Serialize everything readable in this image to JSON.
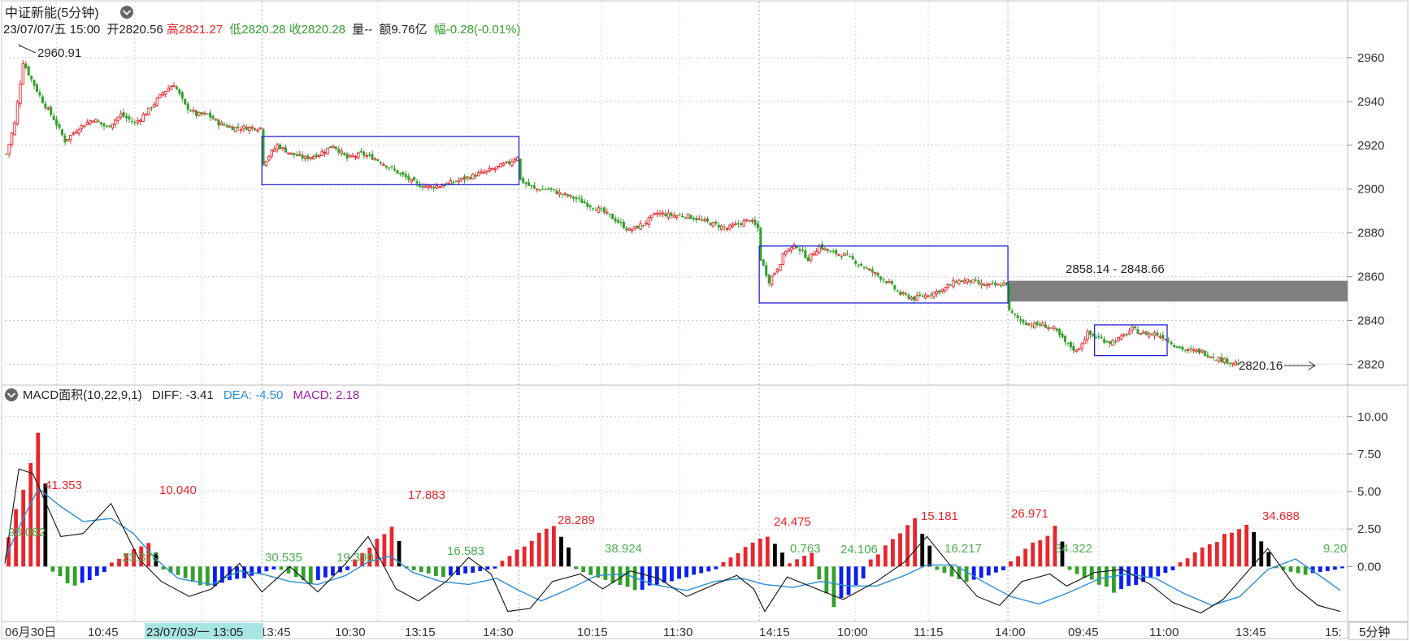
{
  "header": {
    "title": "中证新能(5分钟)",
    "datetime": "23/07/07/五 15:00",
    "open_label": "开",
    "open_value": "2820.56",
    "high_label": "高",
    "high_value": "2821.27",
    "low_label": "低",
    "low_value": "2820.28",
    "close_label": "收",
    "close_value": "2820.28",
    "volume_label": "量",
    "volume_value": "--",
    "amount_label": "额",
    "amount_value": "9.76亿",
    "change_label": "幅",
    "change_value": "-0.28(-0.01%)"
  },
  "price_panel": {
    "high_annotation": "2960.91",
    "low_annotation": "2820.16",
    "gap_label": "2858.14 - 2848.66",
    "gap_range": [
      2848.66,
      2858.14
    ]
  },
  "macd_panel": {
    "indicator_label": "MACD面积(10,22,9,1)",
    "diff_label": "DIFF: -3.41",
    "dea_label": "DEA: -4.50",
    "macd_label": "MACD: 2.18"
  },
  "time_axis": {
    "labels": [
      "06月30日",
      "10:45",
      "11:30",
      "13:45",
      "10:30",
      "13:15",
      "14:30",
      "10:15",
      "11:30",
      "14:15",
      "10:00",
      "11:15",
      "14:00",
      "09:45",
      "11:00",
      "13:45",
      "15:"
    ],
    "cursor_label": "23/07/03/一 13:05",
    "period_button": "5分钟"
  },
  "colors": {
    "up": "#e8262c",
    "down": "#33a02c",
    "macd_pos_bar": "#000000",
    "macd_neg_bar": "#0a1ff0",
    "dea_line": "#2b8fd6",
    "diff_line": "#111111",
    "box": "#2424d6",
    "gap_fill": "#808080",
    "cursor_bg": "#a8e6e3"
  },
  "chart_data": [
    {
      "type": "candlestick",
      "ylim": [
        2812,
        2970
      ],
      "yticks": [
        "2960",
        "2940",
        "2920",
        "2900",
        "2880",
        "2860",
        "2840",
        "2820"
      ],
      "close_path": [
        [
          0,
          2916
        ],
        [
          3,
          2930
        ],
        [
          6,
          2958
        ],
        [
          9,
          2950
        ],
        [
          13,
          2940
        ],
        [
          17,
          2932
        ],
        [
          21,
          2922
        ],
        [
          26,
          2928
        ],
        [
          31,
          2932
        ],
        [
          36,
          2928
        ],
        [
          41,
          2934
        ],
        [
          46,
          2930
        ],
        [
          51,
          2936
        ],
        [
          56,
          2944
        ],
        [
          60,
          2948
        ],
        [
          64,
          2938
        ],
        [
          68,
          2934
        ],
        [
          72,
          2934
        ],
        [
          76,
          2930
        ],
        [
          81,
          2928
        ],
        [
          86,
          2928
        ],
        [
          91,
          2928
        ],
        [
          92,
          2912
        ],
        [
          97,
          2920
        ],
        [
          102,
          2916
        ],
        [
          107,
          2914
        ],
        [
          112,
          2916
        ],
        [
          117,
          2920
        ],
        [
          122,
          2914
        ],
        [
          127,
          2916
        ],
        [
          132,
          2914
        ],
        [
          137,
          2910
        ],
        [
          142,
          2906
        ],
        [
          147,
          2902
        ],
        [
          152,
          2901
        ],
        [
          157,
          2902
        ],
        [
          162,
          2904
        ],
        [
          167,
          2906
        ],
        [
          172,
          2908
        ],
        [
          176,
          2910
        ],
        [
          180,
          2912
        ],
        [
          183,
          2915
        ],
        [
          184,
          2904
        ],
        [
          189,
          2900
        ],
        [
          194,
          2900
        ],
        [
          198,
          2898
        ],
        [
          203,
          2896
        ],
        [
          208,
          2893
        ],
        [
          213,
          2890
        ],
        [
          218,
          2886
        ],
        [
          223,
          2881
        ],
        [
          228,
          2884
        ],
        [
          233,
          2889
        ],
        [
          238,
          2888
        ],
        [
          243,
          2888
        ],
        [
          248,
          2886
        ],
        [
          253,
          2884
        ],
        [
          258,
          2882
        ],
        [
          262,
          2884
        ],
        [
          266,
          2886
        ],
        [
          269,
          2882
        ],
        [
          270,
          2868
        ],
        [
          273,
          2858
        ],
        [
          276,
          2864
        ],
        [
          279,
          2872
        ],
        [
          283,
          2874
        ],
        [
          287,
          2868
        ],
        [
          291,
          2874
        ],
        [
          295,
          2871
        ],
        [
          300,
          2870
        ],
        [
          305,
          2866
        ],
        [
          310,
          2862
        ],
        [
          315,
          2858
        ],
        [
          320,
          2852
        ],
        [
          325,
          2850
        ],
        [
          330,
          2852
        ],
        [
          335,
          2854
        ],
        [
          340,
          2858
        ],
        [
          345,
          2858
        ],
        [
          350,
          2856
        ],
        [
          355,
          2856
        ],
        [
          358,
          2857
        ],
        [
          359,
          2844
        ],
        [
          363,
          2840
        ],
        [
          367,
          2838
        ],
        [
          371,
          2838
        ],
        [
          375,
          2836
        ],
        [
          379,
          2830
        ],
        [
          383,
          2826
        ],
        [
          387,
          2834
        ],
        [
          391,
          2832
        ],
        [
          395,
          2830
        ],
        [
          399,
          2832
        ],
        [
          403,
          2836
        ],
        [
          407,
          2834
        ],
        [
          411,
          2834
        ],
        [
          415,
          2832
        ],
        [
          419,
          2828
        ],
        [
          423,
          2826
        ],
        [
          427,
          2826
        ],
        [
          431,
          2824
        ],
        [
          435,
          2822
        ],
        [
          441,
          2820.28
        ]
      ],
      "extremes": {
        "high": 2960.91,
        "low": 2820.16
      }
    },
    {
      "type": "macd",
      "ylim": [
        -3.4,
        10.8
      ],
      "yticks": [
        "10.00",
        "7.50",
        "5.00",
        "2.50",
        "0.00"
      ],
      "area_labels": [
        {
          "value": "41.353",
          "sign": "positive"
        },
        {
          "value": "93.082",
          "sign": "negative"
        },
        {
          "value": "10.040",
          "sign": "positive"
        },
        {
          "value": "23.370",
          "sign": "negative"
        },
        {
          "value": "30.535",
          "sign": "negative"
        },
        {
          "value": "19.390",
          "sign": "negative"
        },
        {
          "value": "17.883",
          "sign": "positive"
        },
        {
          "value": "16.583",
          "sign": "negative"
        },
        {
          "value": "28.289",
          "sign": "positive"
        },
        {
          "value": "38.924",
          "sign": "negative"
        },
        {
          "value": "24.475",
          "sign": "positive"
        },
        {
          "value": "0.763",
          "sign": "negative"
        },
        {
          "value": "24.106",
          "sign": "negative"
        },
        {
          "value": "15.181",
          "sign": "positive"
        },
        {
          "value": "16.217",
          "sign": "negative"
        },
        {
          "value": "26.971",
          "sign": "positive"
        },
        {
          "value": "34.322",
          "sign": "negative"
        },
        {
          "value": "34.688",
          "sign": "positive"
        },
        {
          "value": "9.20",
          "sign": "negative"
        }
      ],
      "histogram_segments": [
        {
          "from": 0,
          "to": 5,
          "peak": 9.8
        },
        {
          "from": 6,
          "to": 13,
          "peak": -1.5
        },
        {
          "from": 14,
          "to": 20,
          "peak": 1.8
        },
        {
          "from": 21,
          "to": 36,
          "peak": -1.5
        },
        {
          "from": 37,
          "to": 46,
          "peak": -1.2
        },
        {
          "from": 47,
          "to": 53,
          "peak": 2.9
        },
        {
          "from": 54,
          "to": 66,
          "peak": -0.8
        },
        {
          "from": 67,
          "to": 76,
          "peak": 3.1
        },
        {
          "from": 77,
          "to": 96,
          "peak": -1.7
        },
        {
          "from": 97,
          "to": 105,
          "peak": 2.3
        },
        {
          "from": 106,
          "to": 109,
          "peak": 1.0
        },
        {
          "from": 110,
          "to": 116,
          "peak": -3.0
        },
        {
          "from": 117,
          "to": 125,
          "peak": 3.3
        },
        {
          "from": 126,
          "to": 135,
          "peak": -1.2
        },
        {
          "from": 136,
          "to": 143,
          "peak": 2.8
        },
        {
          "from": 144,
          "to": 158,
          "peak": -1.8
        },
        {
          "from": 159,
          "to": 171,
          "peak": 3.2
        },
        {
          "from": 172,
          "to": 181,
          "peak": -0.6
        }
      ],
      "diff_path": [
        [
          0,
          0.2
        ],
        [
          5,
          6.5
        ],
        [
          10,
          6.2
        ],
        [
          20,
          2.0
        ],
        [
          28,
          2.2
        ],
        [
          38,
          4.2
        ],
        [
          48,
          0.5
        ],
        [
          56,
          -1.0
        ],
        [
          66,
          -2.0
        ],
        [
          74,
          -1.5
        ],
        [
          84,
          0.2
        ],
        [
          92,
          -1.7
        ],
        [
          102,
          0.0
        ],
        [
          112,
          -1.7
        ],
        [
          122,
          0.2
        ],
        [
          130,
          2.0
        ],
        [
          140,
          -1.5
        ],
        [
          148,
          -2.3
        ],
        [
          158,
          -1.0
        ],
        [
          166,
          0.6
        ],
        [
          174,
          -0.5
        ],
        [
          180,
          -3.0
        ],
        [
          188,
          -2.8
        ],
        [
          196,
          -1.0
        ],
        [
          206,
          -0.5
        ],
        [
          214,
          -1.5
        ],
        [
          224,
          -0.3
        ],
        [
          234,
          -0.8
        ],
        [
          244,
          -2.0
        ],
        [
          254,
          -1.2
        ],
        [
          262,
          -0.6
        ],
        [
          268,
          -1.5
        ],
        [
          272,
          -3.0
        ],
        [
          280,
          -0.7
        ],
        [
          288,
          -1.3
        ],
        [
          300,
          -2.2
        ],
        [
          312,
          -1.0
        ],
        [
          322,
          0.3
        ],
        [
          330,
          2.0
        ],
        [
          340,
          -0.3
        ],
        [
          348,
          -2.0
        ],
        [
          356,
          -2.6
        ],
        [
          364,
          -1.0
        ],
        [
          374,
          -0.5
        ],
        [
          380,
          -1.3
        ],
        [
          390,
          -0.4
        ],
        [
          400,
          -0.2
        ],
        [
          410,
          -1.2
        ],
        [
          418,
          -2.4
        ],
        [
          428,
          -3.1
        ],
        [
          436,
          -2.2
        ],
        [
          444,
          -0.5
        ],
        [
          452,
          1.2
        ],
        [
          462,
          -1.4
        ],
        [
          470,
          -2.6
        ],
        [
          478,
          -3.0
        ]
      ],
      "dea_path": [
        [
          0,
          0.5
        ],
        [
          6,
          3.0
        ],
        [
          12,
          5.2
        ],
        [
          20,
          4.0
        ],
        [
          28,
          3.0
        ],
        [
          38,
          3.2
        ],
        [
          46,
          2.2
        ],
        [
          54,
          0.5
        ],
        [
          62,
          -0.8
        ],
        [
          74,
          -1.2
        ],
        [
          84,
          -0.3
        ],
        [
          92,
          -0.5
        ],
        [
          102,
          -1.0
        ],
        [
          112,
          -1.2
        ],
        [
          122,
          -0.6
        ],
        [
          130,
          0.3
        ],
        [
          138,
          0.7
        ],
        [
          146,
          -0.4
        ],
        [
          156,
          -1.0
        ],
        [
          166,
          -1.2
        ],
        [
          176,
          -0.8
        ],
        [
          184,
          -1.6
        ],
        [
          192,
          -2.3
        ],
        [
          202,
          -1.5
        ],
        [
          212,
          -0.6
        ],
        [
          222,
          -0.5
        ],
        [
          232,
          -1.2
        ],
        [
          244,
          -1.6
        ],
        [
          254,
          -1.0
        ],
        [
          264,
          -0.8
        ],
        [
          272,
          -1.2
        ],
        [
          282,
          -1.4
        ],
        [
          292,
          -1.0
        ],
        [
          302,
          -1.3
        ],
        [
          312,
          -1.3
        ],
        [
          322,
          -0.6
        ],
        [
          330,
          0.1
        ],
        [
          340,
          0.1
        ],
        [
          350,
          -1.0
        ],
        [
          360,
          -2.0
        ],
        [
          370,
          -2.5
        ],
        [
          380,
          -1.8
        ],
        [
          392,
          -0.8
        ],
        [
          402,
          -0.5
        ],
        [
          412,
          -0.8
        ],
        [
          422,
          -1.8
        ],
        [
          432,
          -2.6
        ],
        [
          442,
          -2.0
        ],
        [
          452,
          -0.2
        ],
        [
          462,
          0.5
        ],
        [
          472,
          -0.8
        ],
        [
          478,
          -1.6
        ]
      ]
    }
  ]
}
